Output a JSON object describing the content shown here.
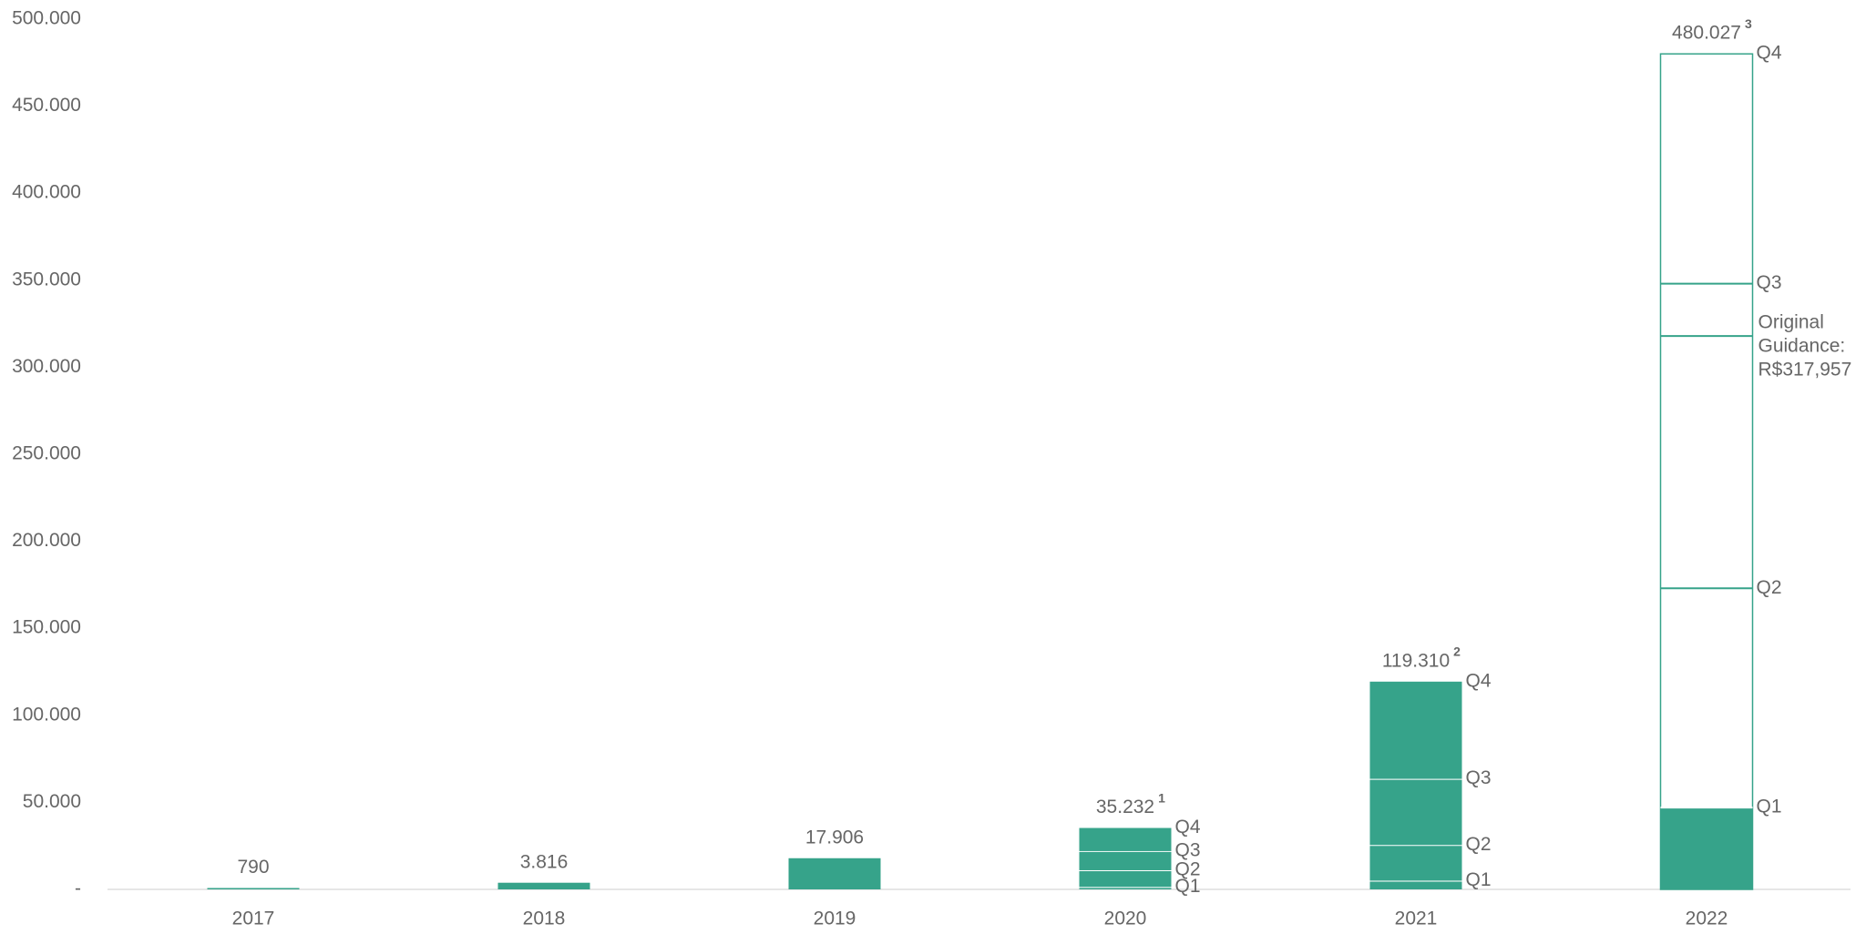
{
  "chart_data": {
    "type": "bar",
    "categories": [
      "2017",
      "2018",
      "2019",
      "2020",
      "2021",
      "2022"
    ],
    "values": [
      790,
      3816,
      17906,
      35232,
      119310,
      480027
    ],
    "value_labels": [
      "790",
      "3.816",
      "17.906",
      "35.232",
      "119.310",
      "480.027"
    ],
    "notes": [
      null,
      null,
      null,
      "1",
      "2",
      "3"
    ],
    "color": "#36a38a",
    "actual_quarters": [
      null,
      null,
      null,
      4,
      4,
      1
    ],
    "series": [
      {
        "name": "Q1",
        "values": [
          null,
          null,
          null,
          1400,
          5000,
          47000
        ]
      },
      {
        "name": "Q2",
        "values": [
          null,
          null,
          null,
          9600,
          20500,
          126000
        ]
      },
      {
        "name": "Q3",
        "values": [
          null,
          null,
          null,
          11000,
          38000,
          175000
        ]
      },
      {
        "name": "Q4",
        "values": [
          null,
          null,
          null,
          13232,
          55810,
          132027
        ]
      }
    ],
    "guidance": {
      "category": "2022",
      "value": 317957,
      "label": [
        "Original",
        "Guidance:",
        "R$317,957"
      ]
    },
    "ylim": [
      0,
      500000
    ],
    "yticks": [
      {
        "value": 0,
        "label": "-"
      },
      {
        "value": 50000,
        "label": "50.000"
      },
      {
        "value": 100000,
        "label": "100.000"
      },
      {
        "value": 150000,
        "label": "150.000"
      },
      {
        "value": 200000,
        "label": "200.000"
      },
      {
        "value": 250000,
        "label": "250.000"
      },
      {
        "value": 300000,
        "label": "300.000"
      },
      {
        "value": 350000,
        "label": "350.000"
      },
      {
        "value": 400000,
        "label": "400.000"
      },
      {
        "value": 450000,
        "label": "450.000"
      },
      {
        "value": 500000,
        "label": "500.000"
      }
    ]
  }
}
